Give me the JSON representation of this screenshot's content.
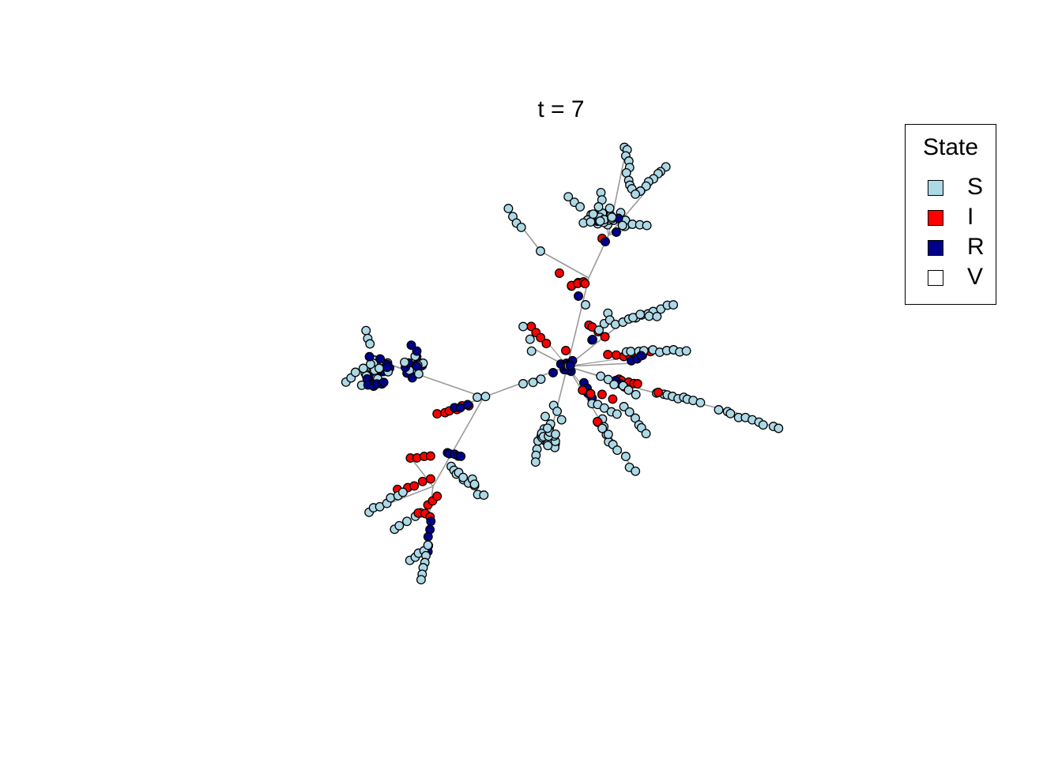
{
  "title": "t = 7",
  "legend": {
    "title": "State",
    "items": [
      {
        "label": "S",
        "color": "#add8e6"
      },
      {
        "label": "I",
        "color": "#ff0000"
      },
      {
        "label": "R",
        "color": "#00008b"
      },
      {
        "label": "V",
        "color": "#ffffff"
      }
    ]
  },
  "diagram": {
    "type": "network",
    "edge_color": "#999999",
    "node_border_color": "#000000",
    "counts": {
      "S": 356,
      "I": 60,
      "R": 93,
      "V": 0
    }
  }
}
